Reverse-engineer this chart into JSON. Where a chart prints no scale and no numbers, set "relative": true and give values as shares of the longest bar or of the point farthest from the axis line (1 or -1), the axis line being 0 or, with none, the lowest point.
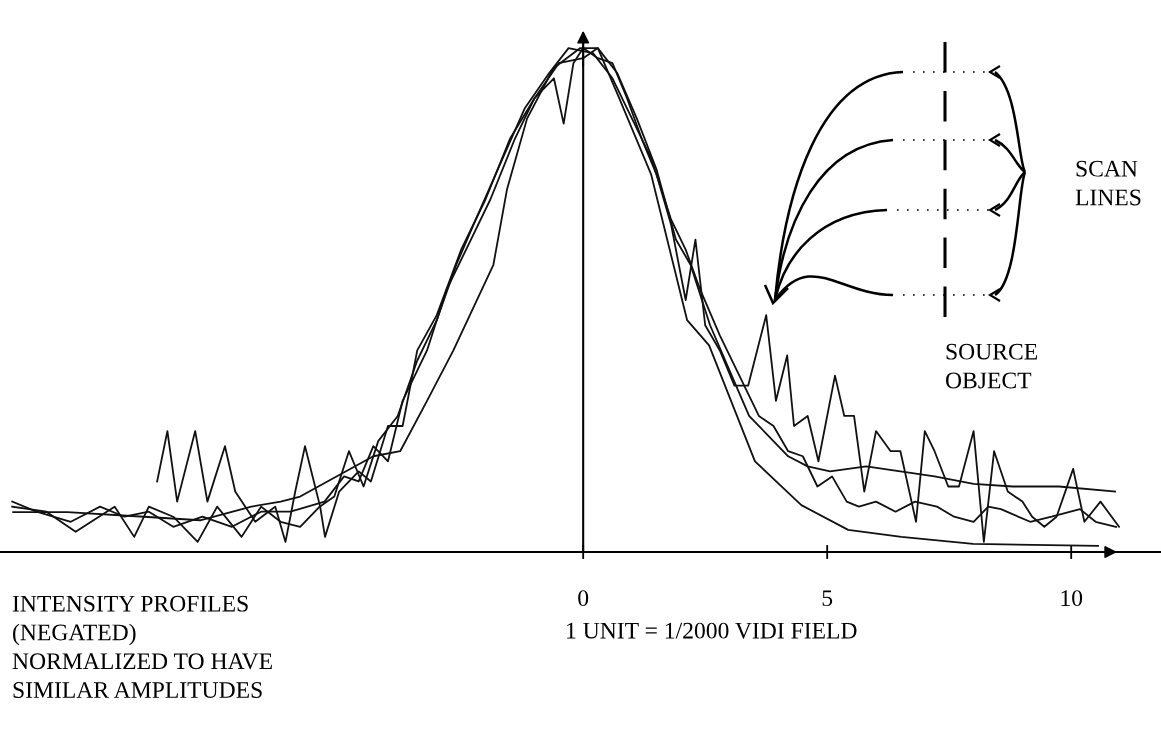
{
  "chart_data": {
    "type": "line",
    "relative": true,
    "xlim": [
      -11.95,
      11.84
    ],
    "xticks": [
      0,
      5,
      10
    ],
    "legend": false,
    "marker": "none",
    "line_style": "solid",
    "annotations": [
      "INTENSITY PROFILES\n(NEGATED)\nNORMALIZED TO HAVE\nSIMILAR AMPLITUDES",
      "1 UNIT = 1/2000 VIDI FIELD",
      "SCAN\nLINES",
      "SOURCE\nOBJECT"
    ],
    "series": [
      {
        "color": "#111111",
        "x": [
          -11.68,
          -10.57,
          -9.0,
          -7.85,
          -6.8,
          -6.2,
          -5.8,
          -4.3,
          -3.75,
          -3.2,
          -2.66,
          -1.84,
          -1.56,
          -1.15,
          -0.61,
          -0.06,
          0.3,
          0.74,
          1.39,
          2.13,
          2.58,
          3.52,
          4.47,
          5.43,
          6.52,
          7.99,
          10.55
        ],
        "values": [
          0.079,
          0.079,
          0.07,
          0.063,
          0.09,
          0.1,
          0.11,
          0.19,
          0.2,
          0.3,
          0.4,
          0.57,
          0.72,
          0.86,
          0.96,
          1.0,
          1.0,
          0.9,
          0.75,
          0.46,
          0.41,
          0.18,
          0.093,
          0.044,
          0.03,
          0.016,
          0.012
        ]
      },
      {
        "color": "#111111",
        "x": [
          -8.73,
          -8.52,
          -8.32,
          -7.95,
          -7.7,
          -7.34,
          -7.13,
          -6.72,
          -6.31,
          -6.1,
          -5.9,
          -5.7,
          -5.39,
          -5.29,
          -5.0,
          -4.6,
          -4.35,
          -4.0,
          -3.7,
          -3.4,
          -3.0,
          -2.5,
          -2.0,
          -1.5,
          -1.0,
          -0.6,
          -0.4,
          -0.2,
          0.0,
          0.3,
          0.6,
          0.9,
          1.2,
          1.5,
          1.8,
          2.1,
          2.3,
          2.5,
          2.8,
          3.1,
          3.38,
          3.75,
          3.95,
          4.18,
          4.32,
          4.6,
          4.82,
          5.16,
          5.35,
          5.55,
          5.76,
          6.0,
          6.3,
          6.5,
          6.82,
          7.0,
          7.2,
          7.48,
          7.7,
          8.0,
          8.21,
          8.42,
          8.7,
          9.0,
          9.2,
          9.45,
          9.7,
          10.04,
          10.27,
          10.6,
          10.98
        ],
        "values": [
          0.14,
          0.24,
          0.1,
          0.24,
          0.1,
          0.21,
          0.12,
          0.06,
          0.09,
          0.02,
          0.12,
          0.21,
          0.09,
          0.03,
          0.12,
          0.16,
          0.14,
          0.25,
          0.25,
          0.4,
          0.47,
          0.6,
          0.7,
          0.82,
          0.9,
          0.94,
          0.85,
          0.97,
          1.0,
          0.98,
          0.97,
          0.9,
          0.82,
          0.75,
          0.65,
          0.5,
          0.62,
          0.45,
          0.4,
          0.33,
          0.33,
          0.47,
          0.3,
          0.39,
          0.25,
          0.27,
          0.18,
          0.35,
          0.27,
          0.27,
          0.12,
          0.24,
          0.2,
          0.2,
          0.06,
          0.24,
          0.2,
          0.13,
          0.13,
          0.24,
          0.02,
          0.2,
          0.12,
          0.1,
          0.07,
          0.05,
          0.07,
          0.165,
          0.06,
          0.1,
          0.05
        ]
      },
      {
        "color": "#111111",
        "x": [
          -11.7,
          -11.2,
          -10.5,
          -9.9,
          -9.4,
          -8.9,
          -8.4,
          -7.8,
          -7.2,
          -6.6,
          -6.0,
          -5.3,
          -4.9,
          -4.6,
          -4.3,
          -4.0,
          -3.7,
          -3.2,
          -2.8,
          -2.3,
          -1.9,
          -1.4,
          -1.0,
          -0.5,
          0.0,
          0.3,
          0.7,
          1.1,
          1.5,
          1.9,
          2.2,
          2.6,
          3.0,
          3.4,
          3.8,
          4.2,
          4.6,
          5.06,
          5.8,
          6.5,
          7.2,
          8.0,
          8.8,
          9.75,
          10.9
        ],
        "values": [
          0.1,
          0.08,
          0.06,
          0.09,
          0.07,
          0.08,
          0.05,
          0.07,
          0.05,
          0.08,
          0.08,
          0.1,
          0.15,
          0.14,
          0.21,
          0.18,
          0.3,
          0.4,
          0.52,
          0.62,
          0.7,
          0.82,
          0.9,
          0.97,
          0.98,
          1.0,
          0.95,
          0.86,
          0.76,
          0.62,
          0.57,
          0.45,
          0.36,
          0.27,
          0.23,
          0.19,
          0.17,
          0.16,
          0.17,
          0.16,
          0.15,
          0.135,
          0.13,
          0.13,
          0.12
        ]
      },
      {
        "color": "#111111",
        "x": [
          -11.7,
          -11.0,
          -10.4,
          -9.6,
          -9.2,
          -8.9,
          -8.4,
          -7.9,
          -7.5,
          -7.0,
          -6.6,
          -6.2,
          -5.8,
          -5.4,
          -5.1,
          -4.8,
          -4.5,
          -4.2,
          -3.8,
          -3.4,
          -3.0,
          -2.6,
          -2.2,
          -1.7,
          -1.2,
          -0.7,
          -0.3,
          0.2,
          0.6,
          1.0,
          1.4,
          1.8,
          2.1,
          2.4,
          2.8,
          3.2,
          3.6,
          3.9,
          4.2,
          4.5,
          4.8,
          5.1,
          5.4,
          5.65,
          6.0,
          6.4,
          6.8,
          7.25,
          7.6,
          8.0,
          8.3,
          8.56,
          9.16,
          9.6,
          10.18,
          10.5,
          10.92
        ],
        "values": [
          0.09,
          0.08,
          0.04,
          0.09,
          0.03,
          0.09,
          0.07,
          0.02,
          0.09,
          0.03,
          0.09,
          0.06,
          0.05,
          0.09,
          0.11,
          0.2,
          0.13,
          0.22,
          0.27,
          0.38,
          0.46,
          0.57,
          0.66,
          0.77,
          0.88,
          0.95,
          1.0,
          0.99,
          0.94,
          0.86,
          0.78,
          0.66,
          0.6,
          0.52,
          0.43,
          0.35,
          0.27,
          0.25,
          0.2,
          0.19,
          0.13,
          0.15,
          0.1,
          0.09,
          0.1,
          0.08,
          0.1,
          0.09,
          0.07,
          0.06,
          0.09,
          0.085,
          0.06,
          0.07,
          0.085,
          0.06,
          0.05
        ]
      }
    ]
  }
}
